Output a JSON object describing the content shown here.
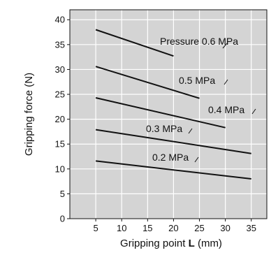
{
  "chart_data": {
    "type": "line",
    "title": "",
    "xlabel": "Gripping point L (mm)",
    "xlabel_prefix": "Gripping point ",
    "xlabel_bold": "L",
    "xlabel_suffix": " (mm)",
    "ylabel": "Gripping force  (N)",
    "xlim": [
      0,
      38
    ],
    "ylim": [
      0,
      42
    ],
    "x_ticks": [
      5,
      10,
      15,
      20,
      25,
      30,
      35
    ],
    "y_ticks": [
      0,
      5,
      10,
      15,
      20,
      25,
      30,
      35,
      40
    ],
    "grid": true,
    "legend": "none",
    "series": [
      {
        "name": "Pressure 0.6 MPa",
        "x": [
          5,
          20
        ],
        "y": [
          38,
          32.7
        ]
      },
      {
        "name": "0.5 MPa",
        "x": [
          5,
          25
        ],
        "y": [
          30.6,
          24.2
        ]
      },
      {
        "name": "0.4 MPa",
        "x": [
          5,
          30
        ],
        "y": [
          24.3,
          18.3
        ]
      },
      {
        "name": "0.3 MPa",
        "x": [
          5,
          35
        ],
        "y": [
          17.9,
          13.1
        ]
      },
      {
        "name": "0.2 MPa",
        "x": [
          5,
          35
        ],
        "y": [
          11.6,
          8
        ]
      }
    ]
  }
}
